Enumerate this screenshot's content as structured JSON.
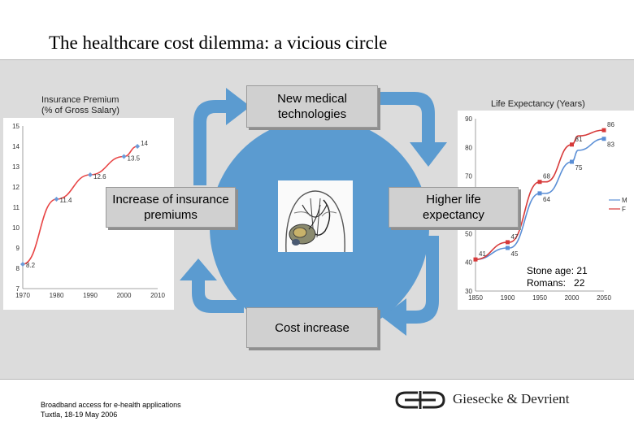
{
  "title": "The healthcare cost dilemma: a vicious circle",
  "boxes": {
    "top": "New medical technologies",
    "left": "Increase of insurance premiums",
    "right": "Higher life expectancy",
    "bottom": "Cost increase"
  },
  "left_chart_label": {
    "line1": "Insurance Premium",
    "line2": "(% of Gross Salary)"
  },
  "right_chart_label": "Life Expectancy (Years)",
  "ages": {
    "line1": "Stone age: 21",
    "line2": "Romans:   22"
  },
  "footer": {
    "line1": "Broadband access for e-health applications",
    "line2": "Tuxtla, 18-19 May 2006"
  },
  "logo_text": "Giesecke & Devrient",
  "colors": {
    "band": "#dcdcdc",
    "circle": "#5b9bd0",
    "arrow": "#5b9bd0",
    "male_series": "#5b8fd6",
    "female_series": "#d73a3a",
    "premium_series": "#e84545"
  },
  "chart_data": [
    {
      "type": "line",
      "x": [
        1970,
        1980,
        1990,
        2000,
        2004
      ],
      "series": [
        {
          "values": [
            8.2,
            11.4,
            12.6,
            13.5,
            14
          ],
          "labels": [
            "8.2",
            "11.4",
            "12.6",
            "13.5",
            "14"
          ]
        }
      ],
      "xticks": [
        "1970",
        "1980",
        "1990",
        "2000",
        "2010"
      ],
      "yticks": [
        "7",
        "8",
        "9",
        "10",
        "11",
        "12",
        "13",
        "14",
        "15"
      ],
      "xlim": [
        1970,
        2010
      ],
      "ylim": [
        7,
        15
      ],
      "grid": false
    },
    {
      "type": "line",
      "x": [
        1850,
        1900,
        1903,
        1950,
        1960,
        2000,
        2010,
        2050
      ],
      "series": [
        {
          "name": "M",
          "values": [
            41,
            45,
            45,
            64,
            64,
            75,
            79,
            83
          ],
          "labels": [
            "",
            "45",
            "",
            "64",
            "",
            "75",
            "",
            "83"
          ]
        },
        {
          "name": "F",
          "values": [
            41,
            47,
            47,
            68,
            68,
            81,
            84,
            86
          ],
          "labels": [
            "41",
            "47",
            "",
            "68",
            "",
            "81",
            "",
            "86"
          ]
        }
      ],
      "xticks": [
        "1850",
        "1900",
        "1950",
        "2000",
        "2050"
      ],
      "yticks": [
        "30",
        "40",
        "50",
        "60",
        "70",
        "80",
        "90"
      ],
      "xlim": [
        1850,
        2050
      ],
      "ylim": [
        30,
        90
      ],
      "grid": false
    }
  ]
}
